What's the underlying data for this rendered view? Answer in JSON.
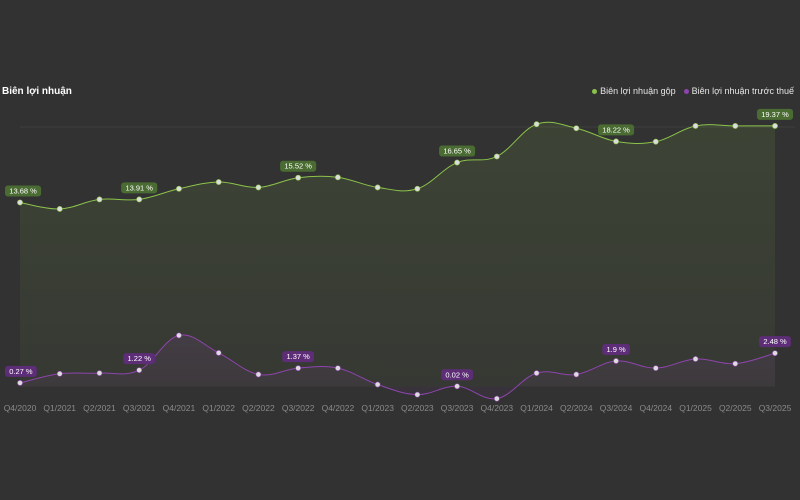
{
  "chart_data": {
    "type": "line",
    "title": "Biên lợi nhuận",
    "categories": [
      "Q4/2020",
      "Q1/2021",
      "Q2/2021",
      "Q3/2021",
      "Q4/2021",
      "Q1/2022",
      "Q2/2022",
      "Q3/2022",
      "Q4/2022",
      "Q1/2023",
      "Q2/2023",
      "Q3/2023",
      "Q4/2023",
      "Q1/2024",
      "Q2/2024",
      "Q3/2024",
      "Q4/2024",
      "Q1/2025",
      "Q2/2025",
      "Q3/2025"
    ],
    "ylim": [
      -1.0,
      21.0
    ],
    "grid": false,
    "legend_position": "top-right",
    "series": [
      {
        "name": "Biên lợi nhuận gộp",
        "color": "#8bc34a",
        "label_bg": "#4a6b32",
        "values": [
          13.68,
          13.2,
          13.91,
          13.91,
          14.7,
          15.2,
          14.8,
          15.52,
          15.55,
          14.8,
          14.7,
          16.65,
          17.1,
          19.5,
          19.2,
          18.22,
          18.2,
          19.37,
          19.37,
          19.37
        ],
        "labels": [
          {
            "index": 0,
            "text": "13.68 %"
          },
          {
            "index": 3,
            "text": "13.91 %"
          },
          {
            "index": 7,
            "text": "15.52 %"
          },
          {
            "index": 11,
            "text": "16.65 %"
          },
          {
            "index": 15,
            "text": "18.22 %"
          },
          {
            "index": 19,
            "text": "19.37 %"
          }
        ]
      },
      {
        "name": "Biên lợi nhuận trước thuế",
        "color": "#8e44ad",
        "label_bg": "#5e2d78",
        "values": [
          0.27,
          0.95,
          1.0,
          1.22,
          3.8,
          2.5,
          0.9,
          1.37,
          1.37,
          0.15,
          -0.6,
          0.02,
          -0.9,
          1.0,
          0.9,
          1.9,
          1.37,
          2.05,
          1.7,
          2.48
        ],
        "labels": [
          {
            "index": 0,
            "text": "0.27 %"
          },
          {
            "index": 3,
            "text": "1.22 %"
          },
          {
            "index": 7,
            "text": "1.37 %"
          },
          {
            "index": 11,
            "text": "0.02 %"
          },
          {
            "index": 15,
            "text": "1.9 %"
          },
          {
            "index": 19,
            "text": "2.48 %"
          }
        ]
      }
    ]
  }
}
